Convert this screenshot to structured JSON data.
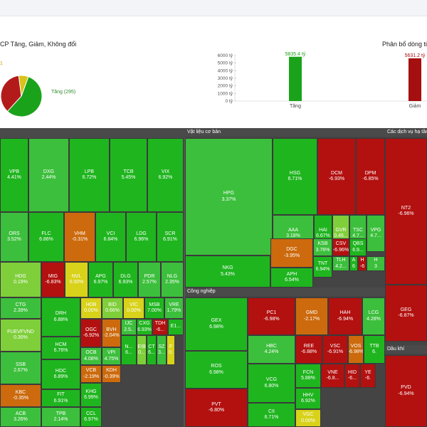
{
  "panels": {
    "left_title": "CP Tăng, Giảm, Không đổi",
    "right_title": "Phân bổ dòng tiề"
  },
  "pie": {
    "label_up": "Tăng (295)",
    "label_unchanged": "1",
    "slices": [
      {
        "name": "Tăng",
        "value": 295,
        "color": "#1aa31a"
      },
      {
        "name": "Giảm",
        "value": 190,
        "color": "#b31b1b"
      },
      {
        "name": "Không đổi",
        "value": 40,
        "color": "#d9c21a"
      }
    ]
  },
  "chart_data": {
    "type": "bar",
    "categories": [
      "Tăng",
      "Giảm"
    ],
    "values": [
      5835.4,
      5631.2
    ],
    "data_labels": [
      "5835.4 tỷ",
      "5631.2 tỷ"
    ],
    "colors": [
      "#1aa31a",
      "#a50f0f"
    ],
    "yticks": [
      "6000 tỷ",
      "5000 tỷ",
      "4000 tỷ",
      "3000 tỷ",
      "2000 tỷ",
      "1000 tỷ",
      "0 tỷ"
    ],
    "ylim": [
      0,
      6000
    ],
    "title": "",
    "xlabel": "",
    "ylabel": ""
  },
  "colors": {
    "green_strong": "#1fb51f",
    "green": "#3cbf3c",
    "green_light": "#7fcf3a",
    "yellow": "#d8d21a",
    "orange": "#cc6a0d",
    "red": "#b31010",
    "red_dark": "#8f0c0c"
  },
  "sectors": [
    {
      "title": "",
      "cells": [
        {
          "t": "VPB",
          "p": "4.41%",
          "c": "green_strong"
        },
        {
          "t": "DXG",
          "p": "2.44%",
          "c": "green"
        },
        {
          "t": "LPB",
          "p": "6.72%",
          "c": "green_strong"
        },
        {
          "t": "TCB",
          "p": "5.45%",
          "c": "green_strong"
        },
        {
          "t": "VIX",
          "p": "6.92%",
          "c": "green_strong"
        },
        {
          "t": "ORS",
          "p": "3.52%",
          "c": "green"
        },
        {
          "t": "FLC",
          "p": "6.86%",
          "c": "green_strong"
        },
        {
          "t": "VHM",
          "p": "-0.31%",
          "c": "orange"
        },
        {
          "t": "VCI",
          "p": "6.84%",
          "c": "green_strong"
        },
        {
          "t": "LDG",
          "p": "6.96%",
          "c": "green_strong"
        },
        {
          "t": "SCR",
          "p": "6.91%",
          "c": "green_strong"
        },
        {
          "t": "HDG",
          "p": "0.19%",
          "c": "green_light"
        },
        {
          "t": "MIG",
          "p": "-6.83%",
          "c": "red"
        },
        {
          "t": "NVL",
          "p": "0.00%",
          "c": "yellow"
        },
        {
          "t": "APG",
          "p": "6.97%",
          "c": "green_strong"
        },
        {
          "t": "DLG",
          "p": "6.93%",
          "c": "green_strong"
        },
        {
          "t": "PDR",
          "p": "2.57%",
          "c": "green"
        },
        {
          "t": "NLG",
          "p": "2.35%",
          "c": "green"
        },
        {
          "t": "CTG",
          "p": "2.39%",
          "c": "green"
        },
        {
          "t": "DRH",
          "p": "6.88%",
          "c": "green_strong"
        },
        {
          "t": "HDB",
          "p": "0.00%",
          "c": "yellow"
        },
        {
          "t": "BID",
          "p": "0.66%",
          "c": "green_light"
        },
        {
          "t": "VIC",
          "p": "0.00%",
          "c": "yellow"
        },
        {
          "t": "MSB",
          "p": "7.00%",
          "c": "green_strong"
        },
        {
          "t": "VRE",
          "p": "1.79%",
          "c": "green"
        },
        {
          "t": "FUEVFVND",
          "p": "0.30%",
          "c": "green_light"
        },
        {
          "t": "HCM",
          "p": "6.76%",
          "c": "green_strong"
        },
        {
          "t": "OGC",
          "p": "-6.92%",
          "c": "red"
        },
        {
          "t": "BVH",
          "p": "-2.04%",
          "c": "orange"
        },
        {
          "t": "IJC",
          "p": "2.5..",
          "c": "green"
        },
        {
          "t": "CXG",
          "p": "6.93%",
          "c": "green_strong"
        },
        {
          "t": "TDH",
          "p": "-6...",
          "c": "red"
        },
        {
          "t": "E1...",
          "p": "",
          "c": "green_strong"
        },
        {
          "t": "SSB",
          "p": "2.67%",
          "c": "green"
        },
        {
          "t": "HDC",
          "p": "6.89%",
          "c": "green_strong"
        },
        {
          "t": "OCB",
          "p": "4.08%",
          "c": "green"
        },
        {
          "t": "VPI",
          "p": "4.75%",
          "c": "green"
        },
        {
          "t": "N...",
          "p": "6...",
          "c": "green_strong"
        },
        {
          "t": "EIB",
          "p": "0...",
          "c": "green_light"
        },
        {
          "t": "CT",
          "p": "6...",
          "c": "green_strong"
        },
        {
          "t": "SZ",
          "p": "3...",
          "c": "green"
        },
        {
          "t": "F",
          "p": "0.",
          "c": "yellow"
        },
        {
          "t": "KBC",
          "p": "-0.35%",
          "c": "orange"
        },
        {
          "t": "FIT",
          "p": "6.91%",
          "c": "green_strong"
        },
        {
          "t": "VCB",
          "p": "-2.19%",
          "c": "orange"
        },
        {
          "t": "KDH",
          "p": "-0.39%",
          "c": "orange"
        },
        {
          "t": "KHG",
          "p": "6.99%",
          "c": "green_strong"
        },
        {
          "t": "ACB",
          "p": "3.26%",
          "c": "green"
        },
        {
          "t": "TPB",
          "p": "2.14%",
          "c": "green"
        },
        {
          "t": "CCL",
          "p": "6.97%",
          "c": "green_strong"
        }
      ]
    },
    {
      "title": "Vật liệu cơ bản",
      "cells": [
        {
          "t": "HPG",
          "p": "3.37%",
          "c": "green"
        },
        {
          "t": "HSG",
          "p": "6.71%",
          "c": "green_strong"
        },
        {
          "t": "DCM",
          "p": "-6.93%",
          "c": "red"
        },
        {
          "t": "DPM",
          "p": "-6.85%",
          "c": "red"
        },
        {
          "t": "AAA",
          "p": "3.18%",
          "c": "green"
        },
        {
          "t": "HAI",
          "p": "6.67%",
          "c": "green_strong"
        },
        {
          "t": "GVR",
          "p": "0.46...",
          "c": "green_light"
        },
        {
          "t": "TSC",
          "p": "4.7...",
          "c": "green"
        },
        {
          "t": "VPG",
          "p": "4.7...",
          "c": "green"
        },
        {
          "t": "NKG",
          "p": "5.43%",
          "c": "green_strong"
        },
        {
          "t": "DGC",
          "p": "-3.95%",
          "c": "orange"
        },
        {
          "t": "KSB",
          "p": "3.76%",
          "c": "green"
        },
        {
          "t": "CSV",
          "p": "-6.96%",
          "c": "red"
        },
        {
          "t": "QBS",
          "p": "6.9...",
          "c": "green_strong"
        },
        {
          "t": "TLH",
          "p": "4.2...",
          "c": "green"
        },
        {
          "t": "A",
          "p": "6",
          "c": "green_strong"
        },
        {
          "t": "H",
          "p": "-6",
          "c": "red"
        },
        {
          "t": "H",
          "p": "3",
          "c": "green"
        },
        {
          "t": "APH",
          "p": "6.54%",
          "c": "green_strong"
        },
        {
          "t": "TNT",
          "p": "6.94%",
          "c": "green_strong"
        }
      ]
    },
    {
      "title": "Công nghiệp",
      "cells": [
        {
          "t": "GEX",
          "p": "6.98%",
          "c": "green_strong"
        },
        {
          "t": "PC1",
          "p": "-6.98%",
          "c": "red"
        },
        {
          "t": "GMD",
          "p": "-2.17%",
          "c": "orange"
        },
        {
          "t": "HAH",
          "p": "-6.94%",
          "c": "red"
        },
        {
          "t": "LCG",
          "p": "4.28%",
          "c": "green"
        },
        {
          "t": "HBC",
          "p": "4.24%",
          "c": "green"
        },
        {
          "t": "REE",
          "p": "-6.88%",
          "c": "red"
        },
        {
          "t": "VSC",
          "p": "-6.91%",
          "c": "red"
        },
        {
          "t": "VOS",
          "p": "-6.98%",
          "c": "orange"
        },
        {
          "t": "TTB",
          "p": "6.",
          "c": "green_strong"
        },
        {
          "t": "ROS",
          "p": "6.98%",
          "c": "green_strong"
        },
        {
          "t": "VCG",
          "p": "6.80%",
          "c": "green_strong"
        },
        {
          "t": "FCN",
          "p": "5.88%",
          "c": "green_strong"
        },
        {
          "t": "VNE",
          "p": "-6.8...",
          "c": "red"
        },
        {
          "t": "HID",
          "p": "-6...",
          "c": "red"
        },
        {
          "t": "YE",
          "p": "-6.",
          "c": "red"
        },
        {
          "t": "HHV",
          "p": "6.92%",
          "c": "green_strong"
        },
        {
          "t": "PVT",
          "p": "-6.80%",
          "c": "red"
        },
        {
          "t": "CII",
          "p": "6.71%",
          "c": "green_strong"
        },
        {
          "t": "VGC",
          "p": "0.00%",
          "c": "yellow"
        }
      ]
    },
    {
      "title": "Các dịch vụ hạ tầng",
      "cells": [
        {
          "t": "NT2",
          "p": "-6.96%",
          "c": "red"
        },
        {
          "t": "GEG",
          "p": "-6.87%",
          "c": "red"
        }
      ]
    },
    {
      "title": "Dầu khí",
      "cells": [
        {
          "t": "PVD",
          "p": "-6.94%",
          "c": "red"
        }
      ]
    }
  ]
}
